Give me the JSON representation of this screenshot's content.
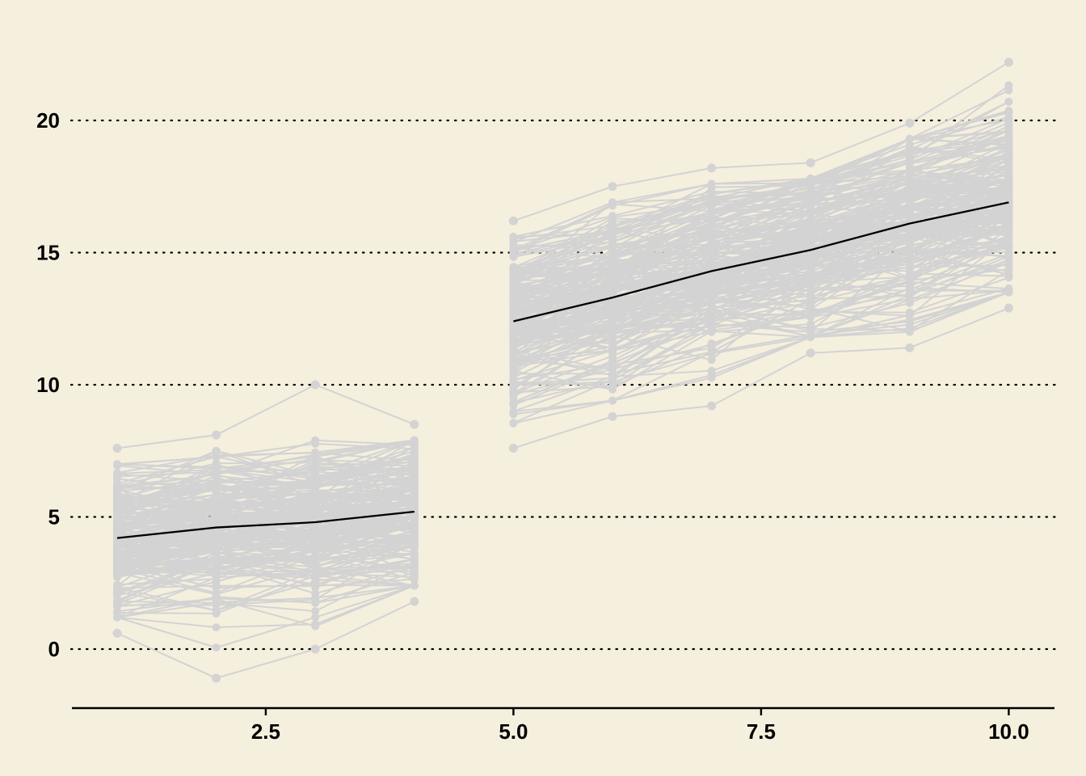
{
  "chart_data": {
    "type": "line",
    "title": "",
    "xlabel": "",
    "ylabel": "",
    "xlim": [
      0.6,
      10.45
    ],
    "ylim": [
      -2.2,
      22.7
    ],
    "x_ticks": [
      "2.5",
      "5.0",
      "7.5",
      "10.0"
    ],
    "y_ticks": [
      "0",
      "5",
      "10",
      "15",
      "20"
    ],
    "grid": "horizontal dotted",
    "background_color": "#f5efde",
    "individual_color": "#d3d3d3",
    "mean_color": "#000000",
    "groups": [
      {
        "x": [
          1,
          2,
          3,
          4
        ],
        "mean": [
          4.2,
          4.6,
          4.8,
          5.2
        ],
        "upper_envelope": [
          7.6,
          8.1,
          10.0,
          8.5
        ],
        "lower_envelope": [
          0.6,
          -1.1,
          0.0,
          1.8
        ]
      },
      {
        "x": [
          5,
          6,
          7,
          8,
          9,
          10
        ],
        "mean": [
          12.4,
          13.3,
          14.3,
          15.1,
          16.1,
          16.9
        ],
        "upper_envelope": [
          16.2,
          17.5,
          18.2,
          18.4,
          19.9,
          22.2
        ],
        "lower_envelope": [
          7.6,
          8.8,
          9.2,
          11.2,
          11.4,
          12.9
        ]
      }
    ]
  }
}
